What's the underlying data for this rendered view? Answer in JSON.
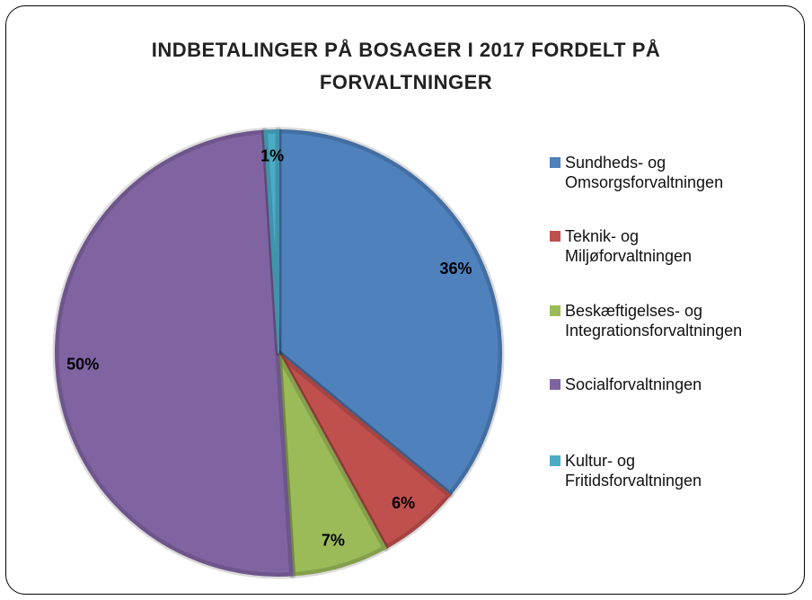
{
  "chart_data": {
    "type": "pie",
    "title": "INDBETALINGER PÅ BOSAGER I 2017 FORDELT PÅ FORVALTNINGER",
    "categories": [
      "Sundheds- og Omsorgsforvaltningen",
      "Teknik- og Miljøforvaltningen",
      "Beskæftigelses- og Integrationsforvaltningen",
      "Socialforvaltningen",
      "Kultur- og Fritidsforvaltningen"
    ],
    "values": [
      36,
      6,
      7,
      50,
      1
    ],
    "value_labels": [
      "36%",
      "6%",
      "7%",
      "50%",
      "1%"
    ],
    "colors": [
      "#4f81bd",
      "#c0504d",
      "#9bbb59",
      "#8064a2",
      "#4bacc6"
    ],
    "legend": "right"
  }
}
